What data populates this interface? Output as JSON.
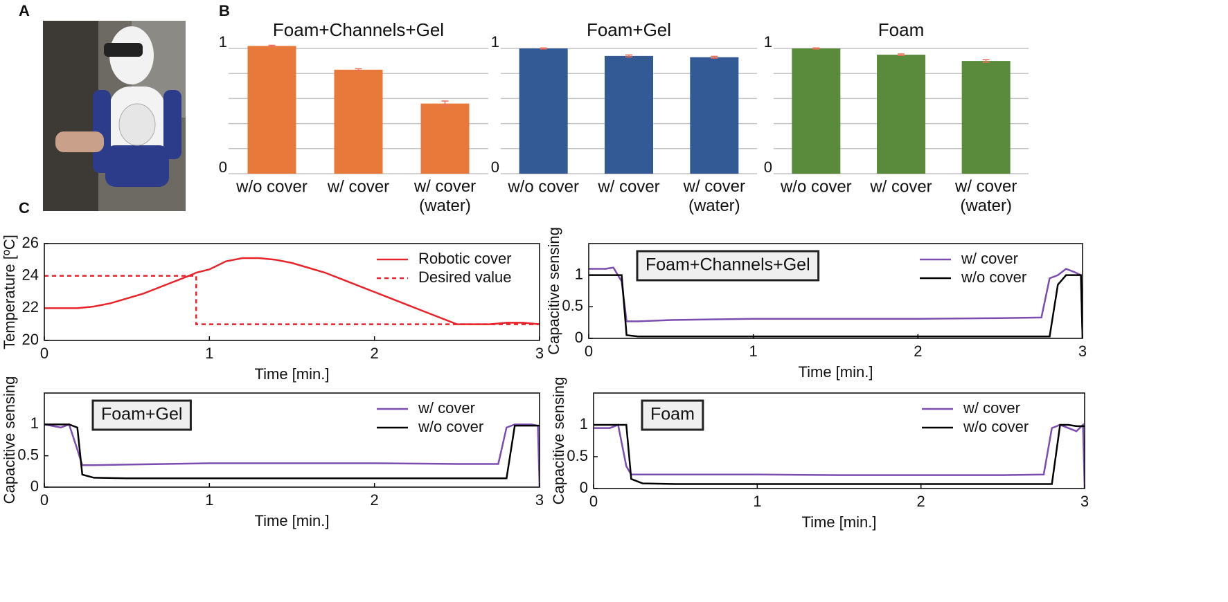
{
  "panel_labels": [
    "A",
    "B",
    "C"
  ],
  "chart_data": [
    {
      "type": "bar",
      "title": "Foam+Channels+Gel",
      "categories": [
        "w/o cover",
        "w/ cover",
        "w/ cover\n(water)"
      ],
      "values": [
        1.02,
        0.83,
        0.56
      ],
      "errors": [
        0.005,
        0.008,
        0.02
      ],
      "color": "#e8793a",
      "error_color": "#ee6e5a",
      "ylim": [
        0,
        1
      ],
      "yticks": [
        0,
        1
      ],
      "minor_gridlines": [
        0.2,
        0.4,
        0.6,
        0.8
      ],
      "grid": true
    },
    {
      "type": "bar",
      "title": "Foam+Gel",
      "categories": [
        "w/o cover",
        "w/ cover",
        "w/ cover\n(water)"
      ],
      "values": [
        1.0,
        0.94,
        0.93
      ],
      "errors": [
        0.004,
        0.008,
        0.007
      ],
      "color": "#345a96",
      "error_color": "#ee6e5a",
      "ylim": [
        0,
        1
      ],
      "yticks": [
        0,
        1
      ],
      "minor_gridlines": [
        0.2,
        0.4,
        0.6,
        0.8
      ],
      "grid": true
    },
    {
      "type": "bar",
      "title": "Foam",
      "categories": [
        "w/o cover",
        "w/ cover",
        "w/ cover\n(water)"
      ],
      "values": [
        1.0,
        0.95,
        0.9
      ],
      "errors": [
        0.004,
        0.006,
        0.01
      ],
      "color": "#5a8a3c",
      "error_color": "#ee6e5a",
      "ylim": [
        0,
        1
      ],
      "yticks": [
        0,
        1
      ],
      "minor_gridlines": [
        0.2,
        0.4,
        0.6,
        0.8
      ],
      "grid": true
    },
    {
      "type": "line",
      "x_label": "Time [min.]",
      "y_label": "Temperature [ºC]",
      "x": [
        0,
        0.1,
        0.2,
        0.3,
        0.4,
        0.5,
        0.6,
        0.7,
        0.8,
        0.9,
        0.92,
        0.92,
        1.0,
        1.1,
        1.2,
        1.3,
        1.4,
        1.5,
        1.6,
        1.7,
        1.8,
        1.9,
        2.0,
        2.1,
        2.2,
        2.3,
        2.4,
        2.5,
        2.6,
        2.7,
        2.8,
        2.9,
        3.0
      ],
      "series": [
        {
          "name": "Robotic cover",
          "color": "#e8232a",
          "dashed": false,
          "values": [
            22.0,
            22.0,
            22.0,
            22.1,
            22.3,
            22.6,
            22.9,
            23.3,
            23.7,
            24.1,
            24.2,
            24.2,
            24.4,
            24.9,
            25.1,
            25.1,
            25.0,
            24.8,
            24.5,
            24.2,
            23.8,
            23.4,
            23.0,
            22.6,
            22.2,
            21.8,
            21.4,
            21.0,
            21.0,
            21.0,
            21.1,
            21.1,
            21.0
          ]
        },
        {
          "name": "Desired value",
          "color": "#e8232a",
          "dashed": true,
          "values": [
            24,
            24,
            24,
            24,
            24,
            24,
            24,
            24,
            24,
            24,
            24,
            21,
            21,
            21,
            21,
            21,
            21,
            21,
            21,
            21,
            21,
            21,
            21,
            21,
            21,
            21,
            21,
            21,
            21,
            21,
            21,
            21,
            21
          ]
        }
      ],
      "xlim": [
        0,
        3
      ],
      "xticks": [
        0,
        1,
        2,
        3
      ],
      "ylim": [
        20,
        26
      ],
      "yticks": [
        20,
        22,
        24,
        26
      ],
      "legend": "upper right"
    },
    {
      "type": "line",
      "annotation": "Foam+Channels+Gel",
      "x_label": "Time [min.]",
      "y_label": "Capacitive sensing",
      "x": [
        0,
        0.1,
        0.15,
        0.2,
        0.23,
        0.3,
        0.5,
        1,
        1.5,
        2,
        2.5,
        2.75,
        2.8,
        2.85,
        2.9,
        2.95,
        2.99,
        3.0
      ],
      "series": [
        {
          "name": "w/ cover",
          "color": "#7b4db0",
          "dashed": false,
          "values": [
            1.1,
            1.1,
            1.12,
            0.9,
            0.27,
            0.27,
            0.29,
            0.31,
            0.31,
            0.31,
            0.32,
            0.33,
            0.95,
            1.0,
            1.1,
            1.05,
            1.0,
            0.0
          ]
        },
        {
          "name": "w/o cover",
          "color": "#000000",
          "dashed": false,
          "values": [
            1.0,
            1.0,
            1.0,
            1.0,
            0.05,
            0.03,
            0.03,
            0.03,
            0.03,
            0.03,
            0.03,
            0.03,
            0.03,
            0.85,
            1.0,
            1.0,
            1.0,
            0.0
          ]
        }
      ],
      "xlim": [
        0,
        3
      ],
      "xticks": [
        0,
        1,
        2,
        3
      ],
      "ylim": [
        0,
        1.5
      ],
      "yticks": [
        0,
        0.5,
        1
      ],
      "legend": "upper right"
    },
    {
      "type": "line",
      "annotation": "Foam+Gel",
      "x_label": "Time [min.]",
      "y_label": "Capacitive sensing",
      "x": [
        0,
        0.1,
        0.15,
        0.2,
        0.23,
        0.3,
        0.5,
        1,
        1.5,
        2,
        2.5,
        2.75,
        2.8,
        2.85,
        2.9,
        2.95,
        2.99,
        3.0
      ],
      "series": [
        {
          "name": "w/ cover",
          "color": "#7b4db0",
          "dashed": false,
          "values": [
            1.0,
            0.95,
            1.0,
            0.6,
            0.35,
            0.35,
            0.36,
            0.38,
            0.38,
            0.38,
            0.37,
            0.37,
            0.95,
            1.0,
            1.0,
            1.0,
            0.98,
            0.0
          ]
        },
        {
          "name": "w/o cover",
          "color": "#000000",
          "dashed": false,
          "values": [
            1.0,
            1.0,
            1.0,
            0.95,
            0.2,
            0.15,
            0.14,
            0.14,
            0.14,
            0.14,
            0.14,
            0.14,
            0.14,
            0.98,
            0.98,
            0.98,
            0.98,
            0.98
          ]
        }
      ],
      "xlim": [
        0,
        3
      ],
      "xticks": [
        0,
        1,
        2,
        3
      ],
      "ylim": [
        0,
        1.5
      ],
      "yticks": [
        0,
        0.5,
        1
      ],
      "legend": "upper right"
    },
    {
      "type": "line",
      "annotation": "Foam",
      "x_label": "Time [min.]",
      "y_label": "Capacitive sensing",
      "x": [
        0,
        0.1,
        0.15,
        0.2,
        0.23,
        0.3,
        0.5,
        1,
        1.5,
        2,
        2.5,
        2.75,
        2.8,
        2.85,
        2.9,
        2.95,
        2.99,
        3.0
      ],
      "series": [
        {
          "name": "w/ cover",
          "color": "#7b4db0",
          "dashed": false,
          "values": [
            0.95,
            0.95,
            1.0,
            0.35,
            0.22,
            0.22,
            0.22,
            0.22,
            0.21,
            0.21,
            0.21,
            0.22,
            0.95,
            1.0,
            0.95,
            0.9,
            1.0,
            0.0
          ]
        },
        {
          "name": "w/o cover",
          "color": "#000000",
          "dashed": false,
          "values": [
            1.0,
            1.0,
            1.0,
            1.0,
            0.15,
            0.08,
            0.07,
            0.07,
            0.07,
            0.07,
            0.07,
            0.07,
            0.07,
            1.0,
            1.0,
            0.98,
            0.98,
            0.98
          ]
        }
      ],
      "xlim": [
        0,
        3
      ],
      "xticks": [
        0,
        1,
        2,
        3
      ],
      "ylim": [
        0,
        1.5
      ],
      "yticks": [
        0,
        0.5,
        1
      ],
      "legend": "upper right"
    }
  ]
}
